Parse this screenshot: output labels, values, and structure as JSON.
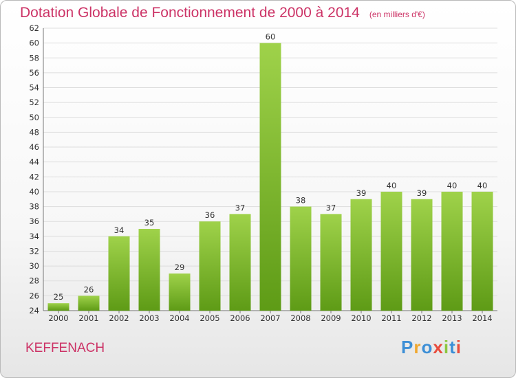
{
  "title": "Dotation Globale de Fonctionnement de 2000 à 2014",
  "subtitle": "(en milliers d'€)",
  "commune": "KEFFENACH",
  "logo": {
    "text": "Proxiti",
    "colors": [
      "#3d8fd6",
      "#f0a830",
      "#3d8fd6",
      "#e84c3d",
      "#8cc63f",
      "#3d8fd6",
      "#e84c3d"
    ]
  },
  "colors": {
    "title": "#cc3366",
    "bar_top": "#9fd24a",
    "bar_bottom": "#5e9b16",
    "grid": "#dddddd"
  },
  "chart_data": {
    "type": "bar",
    "categories": [
      "2000",
      "2001",
      "2002",
      "2003",
      "2004",
      "2005",
      "2006",
      "2007",
      "2008",
      "2009",
      "2010",
      "2011",
      "2012",
      "2013",
      "2014"
    ],
    "values": [
      25,
      26,
      34,
      35,
      29,
      36,
      37,
      60,
      38,
      37,
      39,
      40,
      39,
      40,
      40
    ],
    "ylim": [
      24,
      62
    ],
    "yticks": [
      24,
      26,
      28,
      30,
      32,
      34,
      36,
      38,
      40,
      42,
      44,
      46,
      48,
      50,
      52,
      54,
      56,
      58,
      60,
      62
    ],
    "grid": true,
    "xlabel": "",
    "ylabel": ""
  }
}
